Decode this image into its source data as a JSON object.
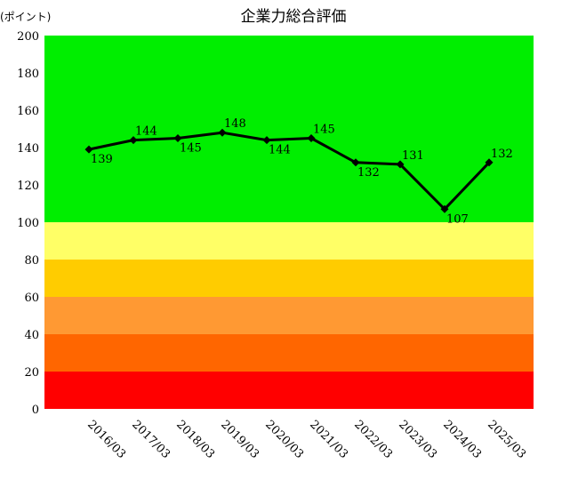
{
  "chart_data": {
    "type": "line",
    "title": "企業力総合評価",
    "ylabel": "(ポイント)",
    "xlabel": "",
    "categories": [
      "2016/03",
      "2017/03",
      "2018/03",
      "2019/03",
      "2020/03",
      "2021/03",
      "2022/03",
      "2023/03",
      "2024/03",
      "2025/03"
    ],
    "values": [
      139,
      144,
      145,
      148,
      144,
      145,
      132,
      131,
      107,
      132
    ],
    "ylim": [
      0,
      200
    ],
    "yticks": [
      "0",
      "20",
      "40",
      "60",
      "80",
      "100",
      "120",
      "140",
      "160",
      "180",
      "200"
    ],
    "bands": [
      {
        "from": 0,
        "to": 20,
        "color": "#ff0000"
      },
      {
        "from": 20,
        "to": 40,
        "color": "#ff6600"
      },
      {
        "from": 40,
        "to": 60,
        "color": "#ff9933"
      },
      {
        "from": 60,
        "to": 80,
        "color": "#ffcc00"
      },
      {
        "from": 80,
        "to": 100,
        "color": "#ffff66"
      },
      {
        "from": 100,
        "to": 200,
        "color": "#00ee00"
      }
    ],
    "line_color": "#000000",
    "grid": false,
    "legend": "none"
  }
}
